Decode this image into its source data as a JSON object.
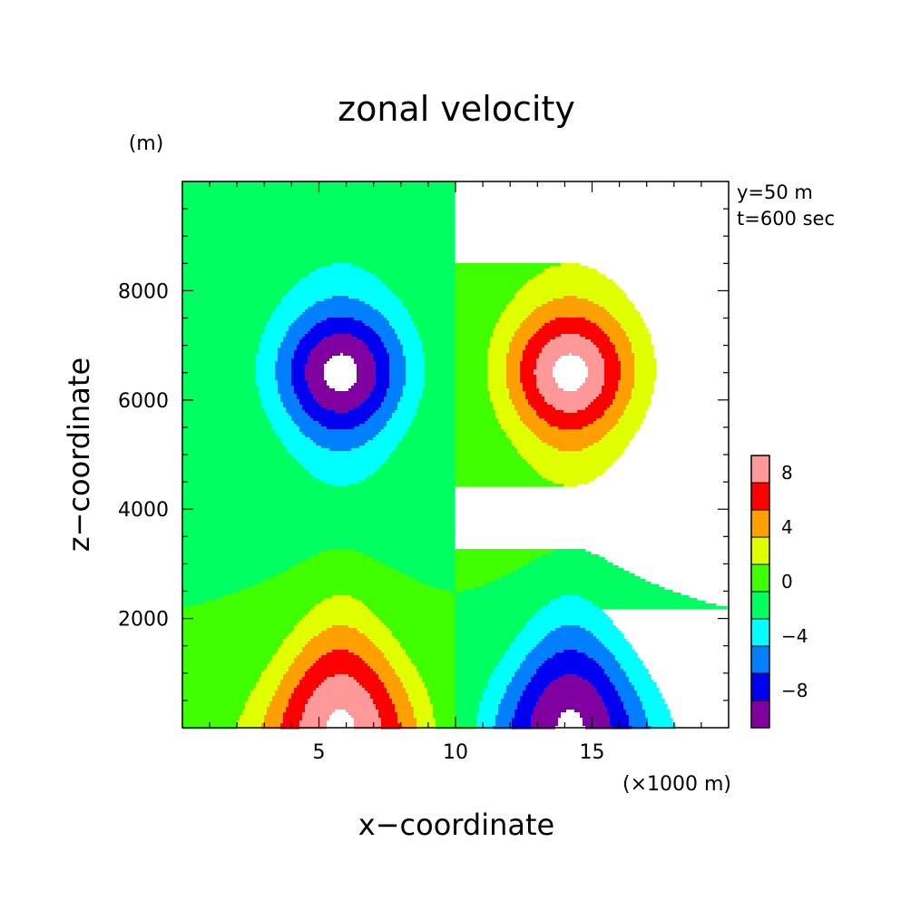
{
  "chart_data": {
    "type": "contour",
    "title": "zonal velocity",
    "xlabel": "x−coordinate",
    "ylabel": "z−coordinate",
    "x_unit": "(×1000 m)",
    "y_unit": "(m)",
    "annotations": [
      "y=50 m",
      "t=600 sec"
    ],
    "xlim": [
      0,
      20
    ],
    "ylim": [
      0,
      10000
    ],
    "x_ticks": [
      {
        "value": 5,
        "label": "5"
      },
      {
        "value": 10,
        "label": "10"
      },
      {
        "value": 15,
        "label": "15"
      }
    ],
    "y_ticks": [
      {
        "value": 2000,
        "label": "2000"
      },
      {
        "value": 4000,
        "label": "4000"
      },
      {
        "value": 6000,
        "label": "6000"
      },
      {
        "value": 8000,
        "label": "8000"
      }
    ],
    "colorbar": {
      "levels": [
        -10,
        -8,
        -6,
        -4,
        -2,
        0,
        2,
        4,
        6,
        8,
        10
      ],
      "colors": [
        "#8000a0",
        "#0000f0",
        "#0080ff",
        "#00ffff",
        "#00ff60",
        "#40ff00",
        "#e0ff00",
        "#ffa000",
        "#ff0000",
        "#ff9898"
      ],
      "labels": [
        {
          "value": -8,
          "label": "−8"
        },
        {
          "value": -4,
          "label": "−4"
        },
        {
          "value": 0,
          "label": "0"
        },
        {
          "value": 4,
          "label": "4"
        },
        {
          "value": 8,
          "label": "8"
        }
      ]
    },
    "field_features": [
      {
        "name": "upper-negative-core",
        "x": 5.8,
        "z": 6500,
        "value_min": -8
      },
      {
        "name": "upper-positive-core",
        "x": 14.2,
        "z": 6500,
        "value_min": 6
      },
      {
        "name": "lower-positive-max",
        "x": 5.8,
        "z": 0,
        "value_min": 10
      },
      {
        "name": "lower-negative-max",
        "x": 14.2,
        "z": 0,
        "value_max": -10
      }
    ]
  }
}
